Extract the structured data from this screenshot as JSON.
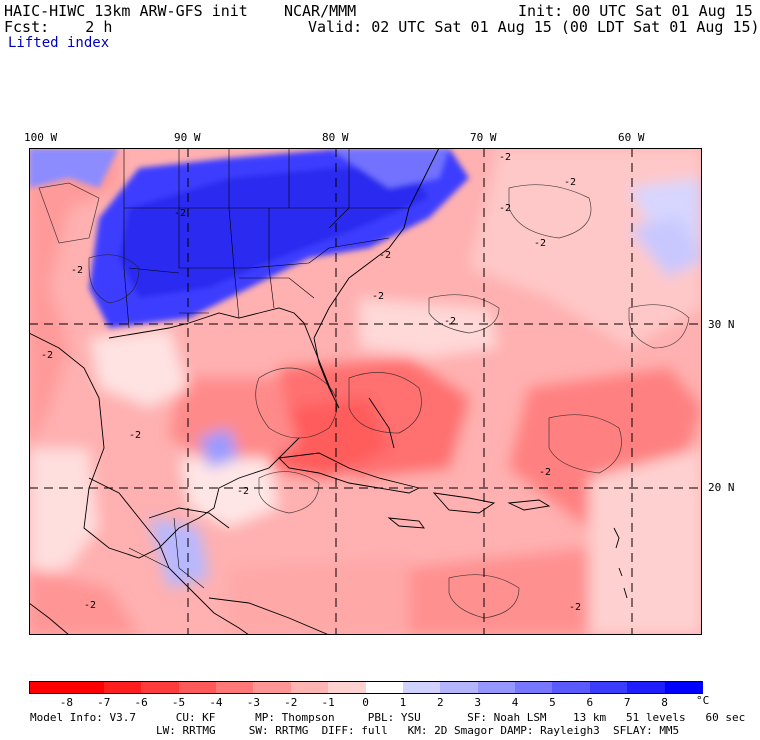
{
  "header": {
    "title": "HAIC-HIWC 13km ARW-GFS init    NCAR/MMM",
    "init": "Init: 00 UTC Sat 01 Aug 15",
    "fcst": "Fcst:    2 h",
    "valid": "Valid: 02 UTC Sat 01 Aug 15 (00 LDT Sat 01 Aug 15)",
    "field": "Lifted index"
  },
  "map": {
    "lon_labels": [
      "100 W",
      "90 W",
      "80 W",
      "70 W",
      "60 W"
    ],
    "lat_labels": [
      "30 N",
      "20 N"
    ],
    "contour_label": "-2"
  },
  "colorbar": {
    "ticks": [
      "-8",
      "-7",
      "-6",
      "-5",
      "-4",
      "-3",
      "-2",
      "-1",
      "0",
      "1",
      "2",
      "3",
      "4",
      "5",
      "6",
      "7",
      "8"
    ],
    "unit": "°C",
    "colors": [
      "#ff0000",
      "#ff1e1e",
      "#ff3c3c",
      "#ff5a5a",
      "#ff7878",
      "#ff9696",
      "#ffb4b4",
      "#ffd2d2",
      "#ffffff",
      "#d2d2ff",
      "#b4b4ff",
      "#9696ff",
      "#7878ff",
      "#5a5aff",
      "#3c3cff",
      "#1e1eff",
      "#0000ff"
    ]
  },
  "model_info": {
    "line1": "Model Info: V3.7      CU: KF      MP: Thompson     PBL: YSU       SF: Noah LSM    13 km   51 levels   60 sec",
    "line2": "LW: RRTMG     SW: RRTMG  DIFF: full   KM: 2D Smagor DAMP: Rayleigh3  SFLAY: MM5"
  }
}
